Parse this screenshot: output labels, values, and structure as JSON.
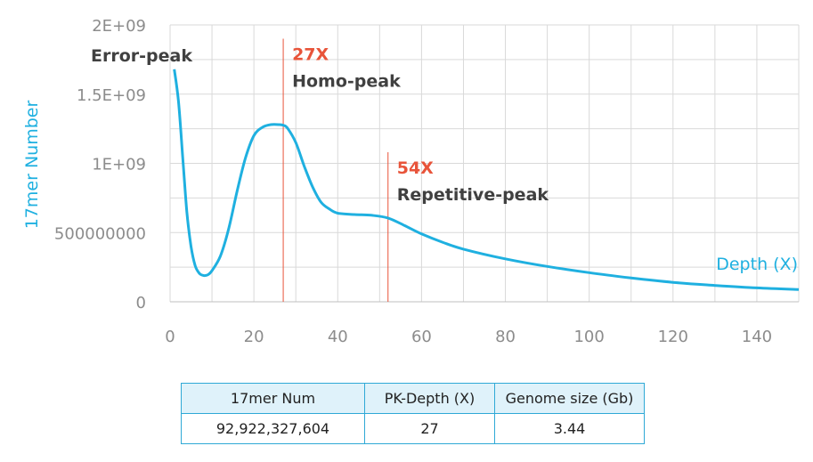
{
  "chart_data": {
    "type": "line",
    "title": "",
    "xlabel": "Depth (X)",
    "ylabel": "17mer Number",
    "xlim": [
      0,
      150
    ],
    "ylim": [
      0,
      2000000000
    ],
    "x_ticks": [
      "0",
      "20",
      "40",
      "60",
      "80",
      "100",
      "120",
      "140"
    ],
    "y_ticks": [
      "0",
      "500000000",
      "1E+09",
      "1.5E+09",
      "2E+09"
    ],
    "grid": "vertical and horizontal",
    "line_color": "#1fb0e0",
    "marker_color": "#e8543a",
    "series": [
      {
        "x": [
          1,
          2,
          3,
          4,
          5,
          6,
          7,
          8,
          9,
          10,
          12,
          14,
          16,
          18,
          20,
          22,
          24,
          26,
          27,
          28,
          30,
          32,
          34,
          36,
          38,
          40,
          44,
          48,
          52,
          56,
          60,
          65,
          70,
          80,
          90,
          100,
          110,
          120,
          130,
          140,
          150
        ],
        "values": [
          1680000000,
          1450000000,
          1050000000,
          650000000,
          400000000,
          260000000,
          205000000,
          190000000,
          195000000,
          225000000,
          330000000,
          530000000,
          800000000,
          1040000000,
          1200000000,
          1260000000,
          1280000000,
          1280000000,
          1275000000,
          1255000000,
          1150000000,
          980000000,
          830000000,
          720000000,
          670000000,
          640000000,
          630000000,
          625000000,
          605000000,
          550000000,
          490000000,
          430000000,
          380000000,
          310000000,
          255000000,
          210000000,
          172000000,
          140000000,
          118000000,
          100000000,
          88000000
        ]
      }
    ],
    "markers": [
      {
        "x": 27,
        "y_top": 1900000000,
        "label": "27X",
        "sublabel": "Homo-peak"
      },
      {
        "x": 52,
        "y_top": 1080000000,
        "label": "54X",
        "sublabel": "Repetitive-peak"
      }
    ],
    "annotations": [
      {
        "text": "Error-peak",
        "x": 1,
        "y": 1770000000
      }
    ]
  },
  "table": {
    "headers": [
      "17mer Num",
      "PK-Depth (X)",
      "Genome size (Gb)"
    ],
    "row": [
      "92,922,327,604",
      "27",
      "3.44"
    ]
  }
}
